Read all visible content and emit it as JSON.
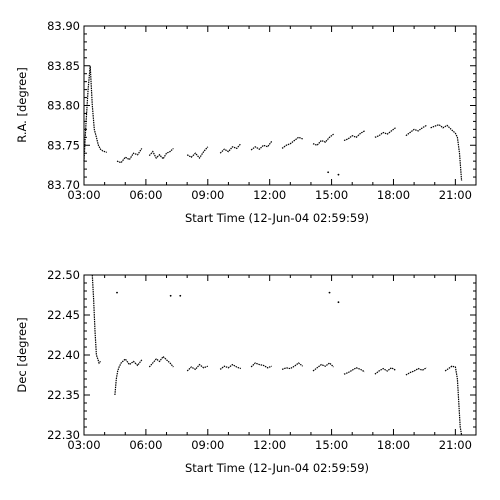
{
  "chart_data": [
    {
      "type": "scatter",
      "xlabel": "Start Time (12-Jun-04 02:59:59)",
      "ylabel": "R.A. [degree]",
      "xlim": [
        "03:00",
        "22:00"
      ],
      "ylim": [
        83.7,
        83.9
      ],
      "x_ticks": [
        "03:00",
        "06:00",
        "09:00",
        "12:00",
        "15:00",
        "18:00",
        "21:00"
      ],
      "y_ticks": [
        "83.70",
        "83.75",
        "83.80",
        "83.85",
        "83.90"
      ],
      "grid": false,
      "color": "#000000",
      "segments": [
        {
          "x": [
            "03:00",
            "03:06",
            "03:12",
            "03:18",
            "03:24",
            "03:30",
            "03:36",
            "03:42",
            "03:48",
            "03:54",
            "04:00",
            "04:06"
          ],
          "y": [
            83.73,
            83.78,
            83.82,
            83.85,
            83.8,
            83.77,
            83.76,
            83.75,
            83.745,
            83.743,
            83.742,
            83.741
          ]
        },
        {
          "x": [
            "04:36",
            "04:48",
            "05:00",
            "05:12",
            "05:24",
            "05:36",
            "05:48"
          ],
          "y": [
            83.73,
            83.728,
            83.735,
            83.732,
            83.74,
            83.738,
            83.746
          ]
        },
        {
          "x": [
            "06:10",
            "06:20",
            "06:30",
            "06:40",
            "06:50",
            "07:00",
            "07:10",
            "07:20"
          ],
          "y": [
            83.737,
            83.742,
            83.734,
            83.738,
            83.733,
            83.74,
            83.742,
            83.746
          ]
        },
        {
          "x": [
            "08:00",
            "08:12",
            "08:24",
            "08:36",
            "08:48",
            "09:00"
          ],
          "y": [
            83.738,
            83.735,
            83.74,
            83.734,
            83.742,
            83.748
          ]
        },
        {
          "x": [
            "09:36",
            "09:48",
            "10:00",
            "10:12",
            "10:24",
            "10:36"
          ],
          "y": [
            83.74,
            83.745,
            83.742,
            83.748,
            83.746,
            83.752
          ]
        },
        {
          "x": [
            "11:06",
            "11:18",
            "11:30",
            "11:42",
            "11:54",
            "12:06"
          ],
          "y": [
            83.744,
            83.748,
            83.745,
            83.75,
            83.748,
            83.755
          ]
        },
        {
          "x": [
            "12:36",
            "12:48",
            "13:00",
            "13:12",
            "13:24",
            "13:36"
          ],
          "y": [
            83.746,
            83.75,
            83.752,
            83.756,
            83.76,
            83.758
          ]
        },
        {
          "x": [
            "14:06",
            "14:18",
            "14:30",
            "14:42",
            "14:54",
            "15:06"
          ],
          "y": [
            83.752,
            83.75,
            83.756,
            83.754,
            83.76,
            83.764
          ]
        },
        {
          "x": [
            "15:36",
            "15:48",
            "16:00",
            "16:12",
            "16:24",
            "16:36"
          ],
          "y": [
            83.756,
            83.758,
            83.762,
            83.76,
            83.765,
            83.768
          ]
        },
        {
          "x": [
            "17:06",
            "17:18",
            "17:30",
            "17:42",
            "17:54",
            "18:06"
          ],
          "y": [
            83.76,
            83.762,
            83.766,
            83.764,
            83.768,
            83.772
          ]
        },
        {
          "x": [
            "18:36",
            "18:48",
            "19:00",
            "19:12",
            "19:24",
            "19:36"
          ],
          "y": [
            83.762,
            83.766,
            83.77,
            83.768,
            83.772,
            83.775
          ]
        },
        {
          "x": [
            "19:48",
            "20:00",
            "20:12",
            "20:24",
            "20:36",
            "20:48",
            "21:00",
            "21:06",
            "21:12",
            "21:18"
          ],
          "y": [
            83.772,
            83.774,
            83.776,
            83.772,
            83.775,
            83.77,
            83.765,
            83.76,
            83.74,
            83.705
          ]
        }
      ],
      "scatter_points": {
        "x": [
          "14:50",
          "15:20"
        ],
        "y": [
          83.716,
          83.713
        ]
      }
    },
    {
      "type": "scatter",
      "xlabel": "Start Time (12-Jun-04 02:59:59)",
      "ylabel": "Dec [degree]",
      "xlim": [
        "03:00",
        "22:00"
      ],
      "ylim": [
        22.3,
        22.5
      ],
      "x_ticks": [
        "03:00",
        "06:00",
        "09:00",
        "12:00",
        "15:00",
        "18:00",
        "21:00"
      ],
      "y_ticks": [
        "22.30",
        "22.35",
        "22.40",
        "22.45",
        "22.50"
      ],
      "grid": false,
      "color": "#000000",
      "segments": [
        {
          "x": [
            "03:24",
            "03:28",
            "03:32",
            "03:36",
            "03:40",
            "03:44",
            "03:48"
          ],
          "y": [
            22.5,
            22.47,
            22.43,
            22.4,
            22.395,
            22.39,
            22.392
          ]
        },
        {
          "x": [
            "04:30",
            "04:34",
            "04:38",
            "04:42",
            "04:48",
            "05:00",
            "05:12",
            "05:24",
            "05:36",
            "05:48"
          ],
          "y": [
            22.35,
            22.37,
            22.38,
            22.385,
            22.39,
            22.395,
            22.388,
            22.392,
            22.387,
            22.394
          ]
        },
        {
          "x": [
            "06:10",
            "06:20",
            "06:30",
            "06:40",
            "06:50",
            "07:00",
            "07:10",
            "07:20"
          ],
          "y": [
            22.385,
            22.39,
            22.395,
            22.392,
            22.398,
            22.394,
            22.39,
            22.385
          ]
        },
        {
          "x": [
            "08:00",
            "08:12",
            "08:24",
            "08:36",
            "08:48",
            "09:00"
          ],
          "y": [
            22.38,
            22.385,
            22.382,
            22.388,
            22.384,
            22.386
          ]
        },
        {
          "x": [
            "09:36",
            "09:48",
            "10:00",
            "10:12",
            "10:24",
            "10:36"
          ],
          "y": [
            22.382,
            22.386,
            22.384,
            22.388,
            22.385,
            22.383
          ]
        },
        {
          "x": [
            "11:06",
            "11:18",
            "11:30",
            "11:42",
            "11:54",
            "12:06"
          ],
          "y": [
            22.385,
            22.39,
            22.388,
            22.387,
            22.384,
            22.386
          ]
        },
        {
          "x": [
            "12:36",
            "12:48",
            "13:00",
            "13:12",
            "13:24",
            "13:36"
          ],
          "y": [
            22.382,
            22.384,
            22.383,
            22.386,
            22.39,
            22.386
          ]
        },
        {
          "x": [
            "14:06",
            "14:18",
            "14:30",
            "14:42",
            "14:54",
            "15:06"
          ],
          "y": [
            22.38,
            22.384,
            22.388,
            22.386,
            22.39,
            22.385
          ]
        },
        {
          "x": [
            "15:36",
            "15:48",
            "16:00",
            "16:12",
            "16:24",
            "16:36"
          ],
          "y": [
            22.376,
            22.378,
            22.381,
            22.384,
            22.382,
            22.379
          ]
        },
        {
          "x": [
            "17:06",
            "17:18",
            "17:30",
            "17:42",
            "17:54",
            "18:06"
          ],
          "y": [
            22.376,
            22.38,
            22.383,
            22.38,
            22.384,
            22.381
          ]
        },
        {
          "x": [
            "18:36",
            "18:48",
            "19:00",
            "19:12",
            "19:24",
            "19:36"
          ],
          "y": [
            22.375,
            22.378,
            22.38,
            22.383,
            22.381,
            22.384
          ]
        },
        {
          "x": [
            "20:30",
            "20:40",
            "20:50",
            "21:00",
            "21:06",
            "21:10",
            "21:14",
            "21:18"
          ],
          "y": [
            22.38,
            22.383,
            22.386,
            22.385,
            22.37,
            22.34,
            22.31,
            22.3
          ]
        }
      ],
      "scatter_points": {
        "x": [
          "04:36",
          "07:12",
          "07:40",
          "14:54",
          "15:20"
        ],
        "y": [
          22.478,
          22.474,
          22.474,
          22.478,
          22.466
        ]
      }
    }
  ]
}
